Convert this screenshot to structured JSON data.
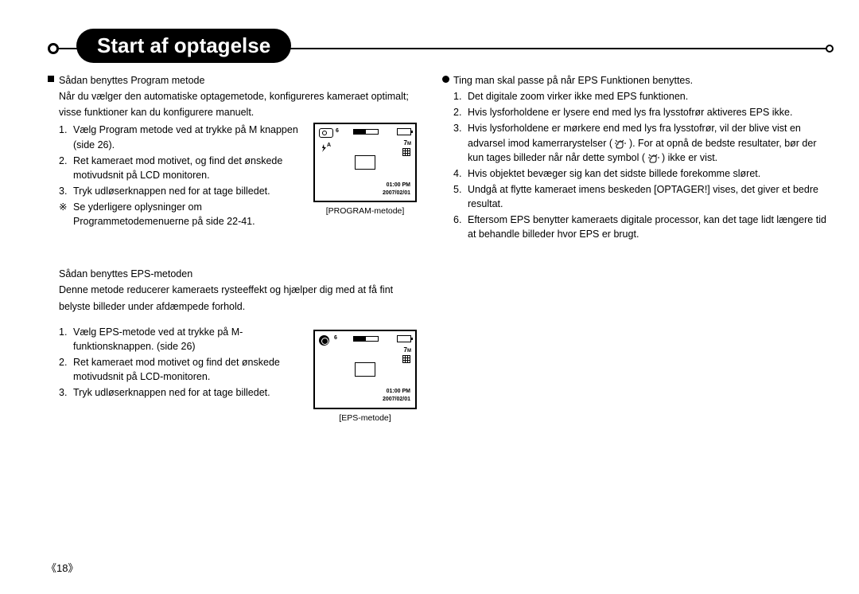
{
  "header": {
    "title": "Start af optagelse"
  },
  "left": {
    "sec1": {
      "heading": "Sådan benyttes Program metode",
      "intro1": "Når du vælger den automatiske optagemetode, konfigureres kameraet optimalt;",
      "intro2": "visse funktioner kan du konfigurere manuelt.",
      "items": [
        {
          "n": "1.",
          "t": "Vælg Program metode ved at trykke på M knappen (side 26)."
        },
        {
          "n": "2.",
          "t": "Ret kameraet mod motivet, og find det ønskede motivudsnit på LCD monitoren."
        },
        {
          "n": "3.",
          "t": "Tryk udløserknappen ned for at tage billedet."
        }
      ],
      "note_mark": "※",
      "note1": "Se yderligere oplysninger om",
      "note2": "Programmetodemenuerne på side 22-41.",
      "lcd_caption": "[PROGRAM-metode]",
      "lcd": {
        "topnum": "6",
        "res": "7",
        "res_sub": "M",
        "time": "01:00 PM",
        "date": "2007/02/01"
      }
    },
    "sec2": {
      "heading": "Sådan benyttes EPS-metoden",
      "intro1": "Denne metode reducerer kameraets rysteeffekt og hjælper dig med at få fint",
      "intro2": "belyste billeder under afdæmpede forhold.",
      "items": [
        {
          "n": "1.",
          "t": "Vælg EPS-metode ved at trykke på M-funktionsknappen. (side 26)"
        },
        {
          "n": "2.",
          "t": "Ret kameraet mod motivet og find det ønskede motivudsnit på LCD-monitoren."
        },
        {
          "n": "3.",
          "t": "Tryk udløserknappen ned for at tage billedet."
        }
      ],
      "lcd_caption": "[EPS-metode]",
      "lcd": {
        "topnum": "6",
        "res": "7",
        "res_sub": "M",
        "time": "01:00 PM",
        "date": "2007/02/01"
      }
    }
  },
  "right": {
    "heading": "Ting man skal passe på når EPS Funktionen benyttes.",
    "items": [
      {
        "n": "1.",
        "t": "Det digitale zoom virker ikke med EPS funktionen."
      },
      {
        "n": "2.",
        "t": "Hvis lysforholdene er lysere end med lys fra lysstofrør aktiveres EPS ikke."
      },
      {
        "n": "3.",
        "t": "Hvis lysforholdene er mørkere end med lys fra lysstofrør, vil der blive vist en advarsel imod kamerrarystelser (  {HAND}  ). For at opnå de bedste resultater, bør der kun tages billeder når når dette symbol (  {HAND}  ) ikke er vist."
      },
      {
        "n": "4.",
        "t": "Hvis objektet bevæger sig kan det sidste billede forekomme sløret."
      },
      {
        "n": "5.",
        "t": "Undgå at flytte kameraet imens beskeden [OPTAGER!] vises, det giver et bedre resultat."
      },
      {
        "n": "6.",
        "t": "Eftersom EPS benytter kameraets digitale processor, kan det tage lidt længere tid at behandle billeder hvor EPS er brugt."
      }
    ]
  },
  "page": "《18》"
}
